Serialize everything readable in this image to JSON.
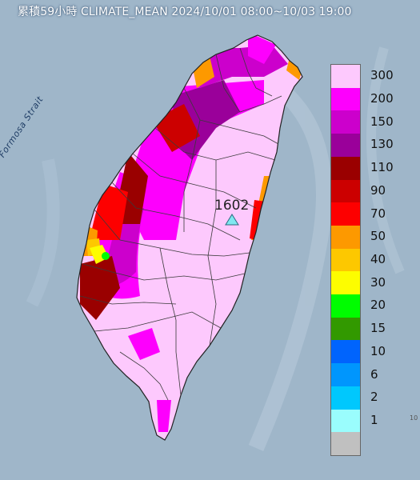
{
  "title": "累積59小時 CLIMATE_MEAN 2024/10/01 08:00~10/03 19:00",
  "station": {
    "label": "1602",
    "marker_color": "#7fe8f0"
  },
  "strait_label": "Formosa Strait",
  "corner_mark": "10",
  "legend": [
    {
      "label": "300",
      "color": "#fdc9fd"
    },
    {
      "label": "200",
      "color": "#fd00fd"
    },
    {
      "label": "150",
      "color": "#cc00cc"
    },
    {
      "label": "130",
      "color": "#9a009a"
    },
    {
      "label": "110",
      "color": "#9a0000"
    },
    {
      "label": "90",
      "color": "#cc0000"
    },
    {
      "label": "70",
      "color": "#fd0000"
    },
    {
      "label": "50",
      "color": "#fd9900"
    },
    {
      "label": "40",
      "color": "#fdc800"
    },
    {
      "label": "30",
      "color": "#fdfd00"
    },
    {
      "label": "20",
      "color": "#00fd00"
    },
    {
      "label": "15",
      "color": "#329900"
    },
    {
      "label": "10",
      "color": "#0064fd"
    },
    {
      "label": "6",
      "color": "#0096fd"
    },
    {
      "label": "2",
      "color": "#00c8fd"
    },
    {
      "label": "1",
      "color": "#9afdfd"
    },
    {
      "label": "",
      "color": "#c0c0c0"
    }
  ],
  "colors": {
    "sea": "#9fb6c9",
    "county_border": "#3a3a3a"
  }
}
